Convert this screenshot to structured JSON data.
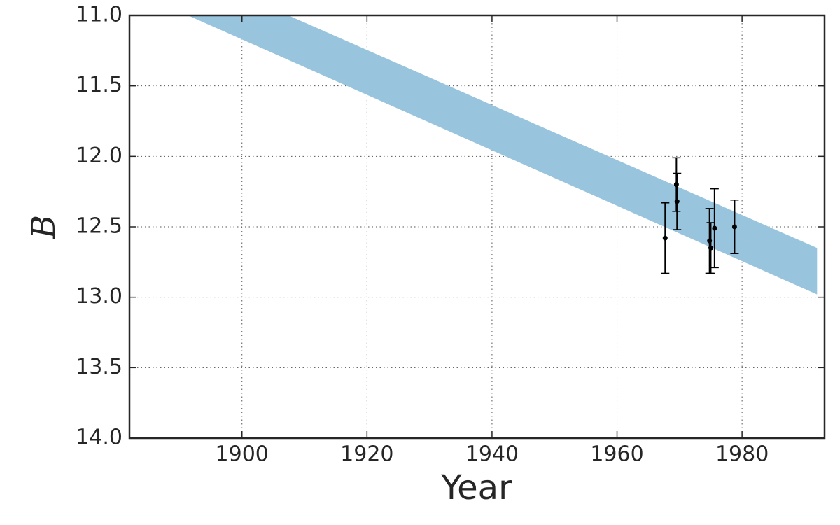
{
  "chart_data": {
    "type": "errorbar",
    "xlabel": "Year",
    "ylabel": "B",
    "xlim": [
      1882,
      1993.2
    ],
    "xticks": [
      1900,
      1920,
      1940,
      1960,
      1980
    ],
    "ylim": [
      11.0,
      14.0
    ],
    "y_inverted": true,
    "yticks": [
      {
        "value": 11.0,
        "label": "11.0"
      },
      {
        "value": 11.5,
        "label": "11.5"
      },
      {
        "value": 12.0,
        "label": "12.0"
      },
      {
        "value": 12.5,
        "label": "12.5"
      },
      {
        "value": 13.0,
        "label": "13.0"
      },
      {
        "value": 13.5,
        "label": "13.5"
      },
      {
        "value": 14.0,
        "label": "14.0"
      }
    ],
    "grid": true,
    "band": {
      "color": "#99c4de",
      "x": [
        1870,
        1992
      ],
      "y1": [
        10.27,
        12.65
      ],
      "y2": [
        10.58,
        12.98
      ]
    },
    "series": [
      {
        "color": "#000000",
        "x": [
          1967.7,
          1969.5,
          1969.6,
          1974.8,
          1975.0,
          1975.6,
          1978.8
        ],
        "values": [
          12.58,
          12.2,
          12.32,
          12.6,
          12.65,
          12.51,
          12.5
        ],
        "errors": [
          0.25,
          0.19,
          0.2,
          0.23,
          0.18,
          0.28,
          0.19
        ]
      }
    ]
  }
}
